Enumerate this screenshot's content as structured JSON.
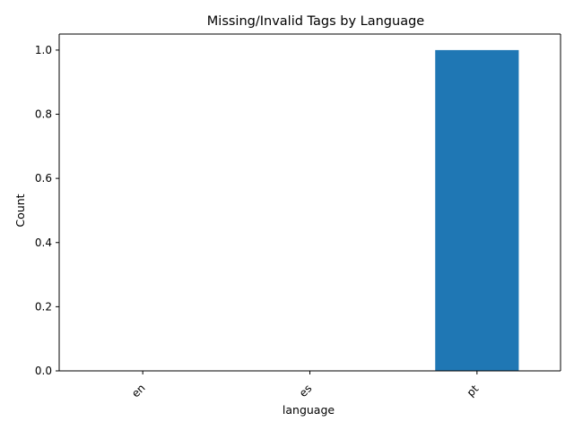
{
  "chart_data": {
    "type": "bar",
    "title": "Missing/Invalid Tags by Language",
    "xlabel": "language",
    "ylabel": "Count",
    "categories": [
      "en",
      "es",
      "pt"
    ],
    "values": [
      0,
      0,
      1
    ],
    "ylim": [
      0,
      1.05
    ],
    "yticks": [
      0.0,
      0.2,
      0.4,
      0.6,
      0.8,
      1.0
    ],
    "ytick_labels": [
      "0.0",
      "0.2",
      "0.4",
      "0.6",
      "0.8",
      "1.0"
    ],
    "xtick_rotation_deg": 45,
    "grid": false,
    "legend": "none",
    "bar_color": "#1f77b4",
    "axis_color": "#000000"
  }
}
